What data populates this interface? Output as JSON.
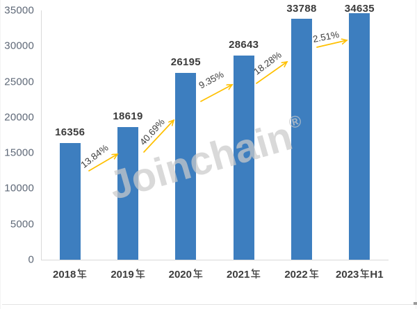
{
  "chart_data": {
    "type": "bar",
    "title": "",
    "categories": [
      "2018年",
      "2019年",
      "2020年",
      "2021年",
      "2022年",
      "2023年H1"
    ],
    "category_parts": [
      {
        "num": "2018",
        "suffix": ""
      },
      {
        "num": "2019",
        "suffix": ""
      },
      {
        "num": "2020",
        "suffix": ""
      },
      {
        "num": "2021",
        "suffix": ""
      },
      {
        "num": "2022",
        "suffix": ""
      },
      {
        "num": "2023",
        "suffix": "H1"
      }
    ],
    "values": [
      16356,
      18619,
      26195,
      28643,
      33788,
      34635
    ],
    "value_labels": [
      "16356",
      "18619",
      "26195",
      "28643",
      "33788",
      "34635"
    ],
    "growth_annotations": [
      {
        "label": "13.84%",
        "from": "2018年",
        "to": "2019年"
      },
      {
        "label": "40.69%",
        "from": "2019年",
        "to": "2020年"
      },
      {
        "label": "9.35%",
        "from": "2020年",
        "to": "2021年"
      },
      {
        "label": "18.28%",
        "from": "2021年",
        "to": "2022年"
      },
      {
        "label": "2.51%",
        "from": "2022年",
        "to": "2023年H1"
      }
    ],
    "y_ticks": [
      "35000",
      "30000",
      "25000",
      "20000",
      "15000",
      "10000",
      "5000",
      "0"
    ],
    "ylim": [
      0,
      35000
    ],
    "xlabel": "",
    "ylabel": "",
    "grid": false,
    "legend": "none",
    "bar_color": "#3D7EBF",
    "arrow_color": "#FFC000",
    "value_label_color": "#3B3B3B",
    "axis_tick_color": "#5E6877",
    "axis_line_color": "#D9D9D9"
  },
  "watermark": {
    "text": "Joinchain",
    "registered_mark": "®"
  }
}
